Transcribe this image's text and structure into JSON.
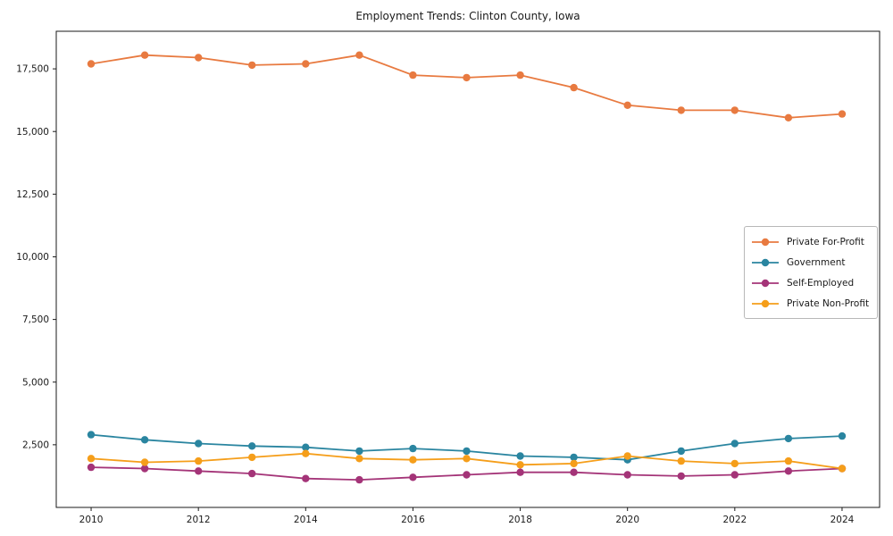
{
  "title": "Employment Trends: Clinton County, Iowa",
  "colors": {
    "spine": "#1a1a1a",
    "text": "#1a1a1a",
    "legend_border": "#b8b8b8",
    "background": "#ffffff",
    "private_for_profit": "#e87a40",
    "government": "#2a85a0",
    "self_employed": "#a43478",
    "private_non_profit": "#f59e1a"
  },
  "chart_data": {
    "type": "line",
    "title": "Employment Trends: Clinton County, Iowa",
    "xlabel": "",
    "ylabel": "",
    "grid": false,
    "legend_position": "center right",
    "x": [
      2010,
      2011,
      2012,
      2013,
      2014,
      2015,
      2016,
      2017,
      2018,
      2019,
      2020,
      2021,
      2022,
      2023,
      2024
    ],
    "series": [
      {
        "name": "Private For-Profit",
        "color": "#e87a40",
        "values": [
          17700,
          18050,
          17950,
          17650,
          17700,
          18050,
          17250,
          17150,
          17250,
          16750,
          16050,
          15850,
          15850,
          15550,
          15700
        ]
      },
      {
        "name": "Government",
        "color": "#2a85a0",
        "values": [
          2900,
          2700,
          2550,
          2450,
          2400,
          2250,
          2350,
          2250,
          2050,
          2000,
          1900,
          2250,
          2550,
          2750,
          2850
        ]
      },
      {
        "name": "Self-Employed",
        "color": "#a43478",
        "values": [
          1600,
          1550,
          1450,
          1350,
          1150,
          1100,
          1200,
          1300,
          1400,
          1400,
          1300,
          1250,
          1300,
          1450,
          1550
        ]
      },
      {
        "name": "Private Non-Profit",
        "color": "#f59e1a",
        "values": [
          1950,
          1800,
          1850,
          2000,
          2150,
          1950,
          1900,
          1950,
          1700,
          1750,
          2050,
          1850,
          1750,
          1850,
          1550
        ]
      }
    ],
    "xlim": [
      2009.35,
      2024.7
    ],
    "ylim": [
      0,
      19000
    ],
    "xticks": {
      "values": [
        2010,
        2012,
        2014,
        2016,
        2018,
        2020,
        2022,
        2024
      ],
      "labels": [
        "2010",
        "2012",
        "2014",
        "2016",
        "2018",
        "2020",
        "2022",
        "2024"
      ]
    },
    "yticks": {
      "values": [
        2500,
        5000,
        7500,
        10000,
        12500,
        15000,
        17500
      ],
      "labels": [
        "2,500",
        "5,000",
        "7,500",
        "10,000",
        "12,500",
        "15,000",
        "17,500"
      ]
    }
  }
}
